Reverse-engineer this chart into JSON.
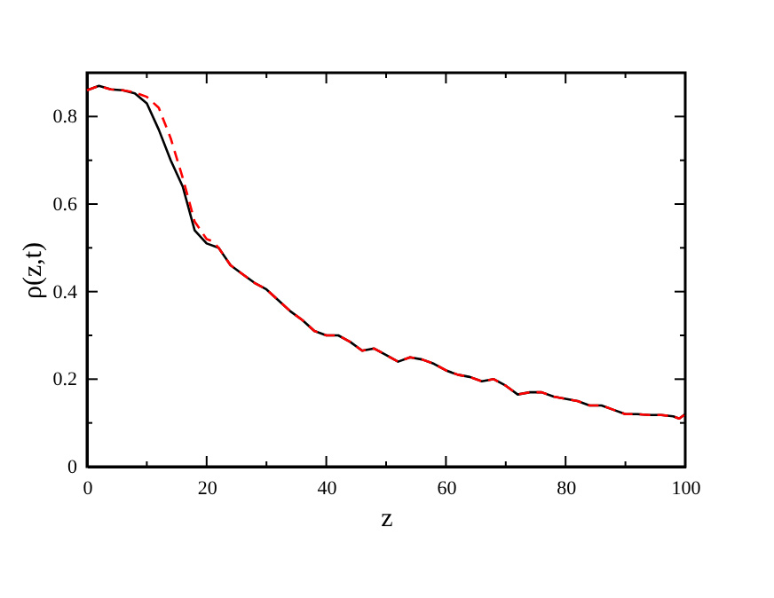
{
  "chart_data": {
    "type": "line",
    "xlabel": "z",
    "ylabel": "ρ(z,t)",
    "xlim": [
      0,
      100
    ],
    "ylim": [
      0,
      0.9
    ],
    "xticks": [
      0,
      {
        "value": 10,
        "label": null
      },
      20,
      {
        "value": 30,
        "label": null
      },
      40,
      {
        "value": 50,
        "label": null
      },
      60,
      {
        "value": 70,
        "label": null
      },
      80,
      {
        "value": 90,
        "label": null
      },
      100
    ],
    "yticks": [
      0,
      {
        "value": 0.1,
        "label": null
      },
      0.2,
      {
        "value": 0.3,
        "label": null
      },
      0.4,
      {
        "value": 0.5,
        "label": null
      },
      0.6,
      {
        "value": 0.7,
        "label": null
      },
      0.8
    ],
    "grid": false,
    "marker": "none",
    "series": [
      {
        "color": "#000000",
        "line_style": "solid",
        "x": [
          0,
          1,
          2,
          4,
          6,
          8,
          10,
          12,
          14,
          16,
          18,
          20,
          22,
          24,
          26,
          28,
          30,
          32,
          34,
          36,
          38,
          40,
          42,
          44,
          46,
          48,
          50,
          52,
          54,
          56,
          58,
          60,
          62,
          64,
          66,
          68,
          70,
          72,
          74,
          76,
          78,
          80,
          82,
          84,
          86,
          88,
          90,
          92,
          94,
          96,
          98,
          99,
          100
        ],
        "values": [
          0.86,
          0.865,
          0.87,
          0.862,
          0.86,
          0.853,
          0.83,
          0.77,
          0.7,
          0.64,
          0.54,
          0.51,
          0.5,
          0.46,
          0.44,
          0.42,
          0.405,
          0.38,
          0.355,
          0.335,
          0.31,
          0.3,
          0.3,
          0.285,
          0.265,
          0.27,
          0.255,
          0.24,
          0.25,
          0.245,
          0.235,
          0.22,
          0.21,
          0.205,
          0.195,
          0.2,
          0.185,
          0.165,
          0.17,
          0.17,
          0.16,
          0.155,
          0.15,
          0.14,
          0.14,
          0.13,
          0.12,
          0.12,
          0.118,
          0.118,
          0.115,
          0.11,
          0.12
        ]
      },
      {
        "color": "#ff0000",
        "line_style": "dashed",
        "x": [
          0,
          1,
          2,
          4,
          6,
          8,
          10,
          12,
          14,
          16,
          18,
          20,
          21,
          22,
          24,
          26,
          28,
          30,
          32,
          34,
          36,
          38,
          40,
          42,
          44,
          46,
          48,
          50,
          52,
          54,
          56,
          58,
          60,
          62,
          64,
          66,
          68,
          70,
          72,
          74,
          76,
          78,
          80,
          82,
          84,
          86,
          88,
          90,
          92,
          94,
          96,
          98,
          99,
          100
        ],
        "values": [
          0.86,
          0.865,
          0.87,
          0.862,
          0.86,
          0.855,
          0.845,
          0.82,
          0.75,
          0.66,
          0.56,
          0.52,
          0.515,
          0.5,
          0.46,
          0.44,
          0.42,
          0.405,
          0.38,
          0.355,
          0.335,
          0.31,
          0.3,
          0.3,
          0.285,
          0.265,
          0.27,
          0.255,
          0.24,
          0.25,
          0.245,
          0.235,
          0.22,
          0.21,
          0.205,
          0.195,
          0.2,
          0.185,
          0.165,
          0.17,
          0.17,
          0.16,
          0.155,
          0.15,
          0.14,
          0.14,
          0.13,
          0.12,
          0.12,
          0.118,
          0.118,
          0.115,
          0.11,
          0.12
        ]
      }
    ]
  }
}
